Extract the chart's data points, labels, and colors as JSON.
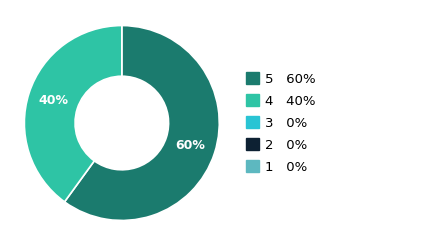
{
  "slices": [
    {
      "label": "5",
      "pct": 60,
      "color": "#1b7b6e",
      "text_pct": "60%"
    },
    {
      "label": "4",
      "pct": 40,
      "color": "#2ec4a5",
      "text_pct": "40%"
    },
    {
      "label": "3",
      "pct": 0,
      "color": "#29c4d4",
      "text_pct": "0%"
    },
    {
      "label": "2",
      "pct": 0,
      "color": "#0d2133",
      "text_pct": "0%"
    },
    {
      "label": "1",
      "pct": 0,
      "color": "#5db8c0",
      "text_pct": "0%"
    }
  ],
  "background_color": "#ffffff",
  "donut_width": 0.52,
  "text_color": "#ffffff",
  "label_fontsize": 9,
  "legend_fontsize": 9.5
}
